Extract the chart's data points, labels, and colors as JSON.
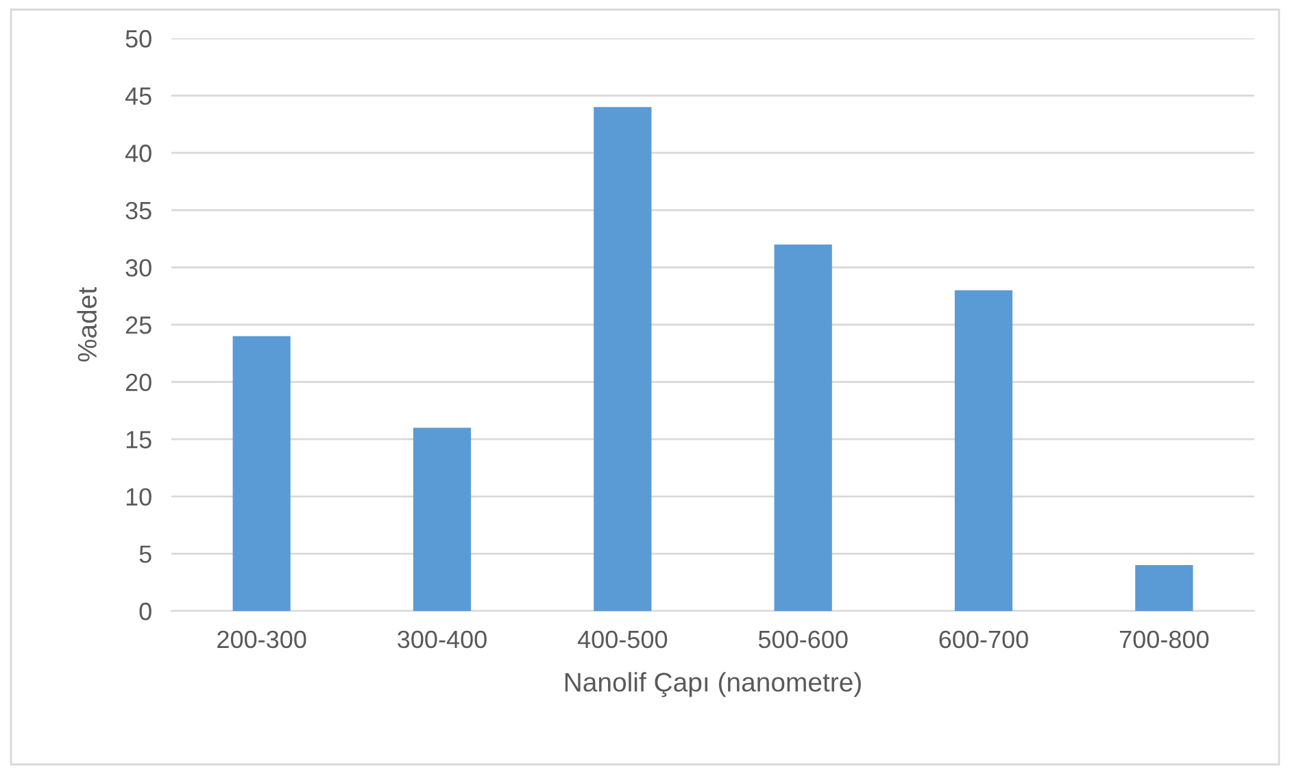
{
  "chart_data": {
    "type": "bar",
    "xlabel": "Nanolif Çapı (nanometre)",
    "ylabel": "%adet",
    "categories": [
      "200-300",
      "300-400",
      "400-500",
      "500-600",
      "600-700",
      "700-800"
    ],
    "values": [
      24,
      16,
      44,
      32,
      28,
      4
    ],
    "color": "#5b9bd5",
    "ylim": [
      0,
      50
    ],
    "yticks": [
      0,
      5,
      10,
      15,
      20,
      25,
      30,
      35,
      40,
      45,
      50
    ],
    "grid": "y",
    "legend": false
  }
}
